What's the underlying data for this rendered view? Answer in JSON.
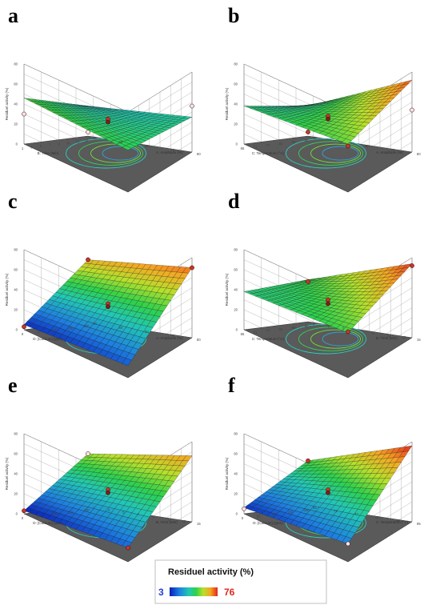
{
  "chart_data": [
    {
      "panel": "a",
      "type": "surface",
      "x_label": "B: Time (Min)",
      "x_ticks": [
        "1",
        "3",
        "5",
        "7",
        "9",
        "11",
        "13",
        "15"
      ],
      "y_label": "A: Amplitude (%)",
      "y_ticks": [
        "40",
        "50",
        "60",
        "70",
        "80"
      ],
      "z_label": "Residuel activity (%)",
      "z_ticks": [
        "0",
        "20",
        "40",
        "60",
        "80"
      ],
      "z_corners": [
        42,
        35,
        46,
        30
      ],
      "z_min": 26,
      "points": [
        {
          "x": 0.5,
          "y": 0.5,
          "z": 37,
          "color": "#c0392b"
        },
        {
          "x": 0.5,
          "y": 0.5,
          "z": 34,
          "color": "#7b1f1f"
        },
        {
          "x": 0.0,
          "y": 1.0,
          "z": 30,
          "color": "#f2e4e4"
        },
        {
          "x": 1.0,
          "y": 0.0,
          "z": 46,
          "color": "#f2e4e4"
        },
        {
          "x": 1.0,
          "y": 1.0,
          "z": 4,
          "color": "#f2e4e4"
        }
      ]
    },
    {
      "panel": "b",
      "type": "surface",
      "x_label": "C: Temperature (°C)",
      "x_ticks": [
        "65",
        "71",
        "77",
        "83",
        "89",
        "95"
      ],
      "y_label": "A: Amplitude (%)",
      "y_ticks": [
        "40",
        "50",
        "60",
        "70",
        "80"
      ],
      "z_label": "Residuel activity (%)",
      "z_ticks": [
        "0",
        "20",
        "40",
        "60",
        "80"
      ],
      "z_corners": [
        48,
        72,
        38,
        30
      ],
      "z_min": 25,
      "points": [
        {
          "x": 0.5,
          "y": 0.5,
          "z": 40,
          "color": "#c0392b"
        },
        {
          "x": 0.5,
          "y": 0.5,
          "z": 37,
          "color": "#7b1f1f"
        },
        {
          "x": 0.0,
          "y": 0.0,
          "z": 46,
          "color": "#c0392b"
        },
        {
          "x": 1.0,
          "y": 0.0,
          "z": 42,
          "color": "#f2e4e4"
        },
        {
          "x": 1.0,
          "y": 1.0,
          "z": 4,
          "color": "#c0392b"
        }
      ]
    },
    {
      "panel": "c",
      "type": "surface",
      "x_label": "D: [Calcium] (ppm)",
      "x_ticks": [
        "0",
        "50",
        "100",
        "150",
        "200"
      ],
      "y_label": "A: Amplitude (%)",
      "y_ticks": [
        "40",
        "50",
        "60",
        "70",
        "80"
      ],
      "z_label": "Residuel activity (%)",
      "z_ticks": [
        "0",
        "20",
        "40",
        "60",
        "80"
      ],
      "z_corners": [
        12,
        70,
        5,
        62
      ],
      "z_min": 3,
      "points": [
        {
          "x": 0.5,
          "y": 0.5,
          "z": 38,
          "color": "#c0392b"
        },
        {
          "x": 0.5,
          "y": 0.5,
          "z": 35,
          "color": "#7b1f1f"
        },
        {
          "x": 1.0,
          "y": 0.0,
          "z": 70,
          "color": "#c0392b"
        },
        {
          "x": 1.0,
          "y": 1.0,
          "z": 62,
          "color": "#c0392b"
        },
        {
          "x": 0.0,
          "y": 1.0,
          "z": 3,
          "color": "#c0392b"
        }
      ]
    },
    {
      "panel": "d",
      "type": "surface",
      "x_label": "C: Temperature (°C)",
      "x_ticks": [
        "65",
        "71",
        "77",
        "83",
        "89",
        "95"
      ],
      "y_label": "B: Time (Min)",
      "y_ticks": [
        "1",
        "3",
        "5",
        "7",
        "9",
        "11",
        "13",
        "15"
      ],
      "z_label": "Residuel activity (%)",
      "z_ticks": [
        "0",
        "20",
        "40",
        "60",
        "80"
      ],
      "z_corners": [
        45,
        74,
        38,
        42
      ],
      "z_min": 30,
      "points": [
        {
          "x": 0.5,
          "y": 0.5,
          "z": 42,
          "color": "#c0392b"
        },
        {
          "x": 0.5,
          "y": 0.5,
          "z": 38,
          "color": "#7b1f1f"
        },
        {
          "x": 0.0,
          "y": 0.0,
          "z": 46,
          "color": "#c0392b"
        },
        {
          "x": 1.0,
          "y": 0.0,
          "z": 72,
          "color": "#c0392b"
        },
        {
          "x": 1.0,
          "y": 1.0,
          "z": 40,
          "color": "#c0392b"
        }
      ]
    },
    {
      "panel": "e",
      "type": "surface",
      "x_label": "D: [Calcium] (ppm)",
      "x_ticks": [
        "0",
        "50",
        "100",
        "150",
        "200"
      ],
      "y_label": "B: Time (Min)",
      "y_ticks": [
        "1",
        "3",
        "5",
        "7",
        "9",
        "11",
        "13",
        "15"
      ],
      "z_label": "Residuel activity (%)",
      "z_ticks": [
        "0",
        "20",
        "40",
        "60",
        "80"
      ],
      "z_corners": [
        14,
        66,
        3,
        52
      ],
      "z_min": 3,
      "points": [
        {
          "x": 0.5,
          "y": 0.5,
          "z": 36,
          "color": "#c0392b"
        },
        {
          "x": 0.5,
          "y": 0.5,
          "z": 33,
          "color": "#7b1f1f"
        },
        {
          "x": 0.0,
          "y": 0.0,
          "z": 14,
          "color": "#c0392b"
        },
        {
          "x": 1.0,
          "y": 1.0,
          "z": 52,
          "color": "#f2e4e4"
        },
        {
          "x": 0.0,
          "y": 1.0,
          "z": 3,
          "color": "#c0392b"
        }
      ]
    },
    {
      "panel": "f",
      "type": "surface",
      "x_label": "D: [Calcium] (ppm)",
      "x_ticks": [
        "0",
        "50",
        "100",
        "150",
        "200"
      ],
      "y_label": "C: Temperature (°C)",
      "y_ticks": [
        "65",
        "71",
        "77",
        "83",
        "89",
        "95"
      ],
      "z_label": "Residuel activity (%)",
      "z_ticks": [
        "0",
        "20",
        "40",
        "60",
        "80"
      ],
      "z_corners": [
        18,
        76,
        6,
        45
      ],
      "z_min": 5,
      "points": [
        {
          "x": 0.5,
          "y": 0.5,
          "z": 36,
          "color": "#c0392b"
        },
        {
          "x": 0.5,
          "y": 0.5,
          "z": 33,
          "color": "#7b1f1f"
        },
        {
          "x": 1.0,
          "y": 1.0,
          "z": 45,
          "color": "#c0392b"
        },
        {
          "x": 0.0,
          "y": 0.0,
          "z": 18,
          "color": "#f2e4e4"
        },
        {
          "x": 0.0,
          "y": 1.0,
          "z": 5,
          "color": "#f2e4e4"
        }
      ]
    }
  ],
  "legend": {
    "title": "Residuel activity  (%)",
    "min_label": "3",
    "max_label": "76",
    "min_color": "#1f3fd6",
    "max_color": "#e1261c"
  }
}
